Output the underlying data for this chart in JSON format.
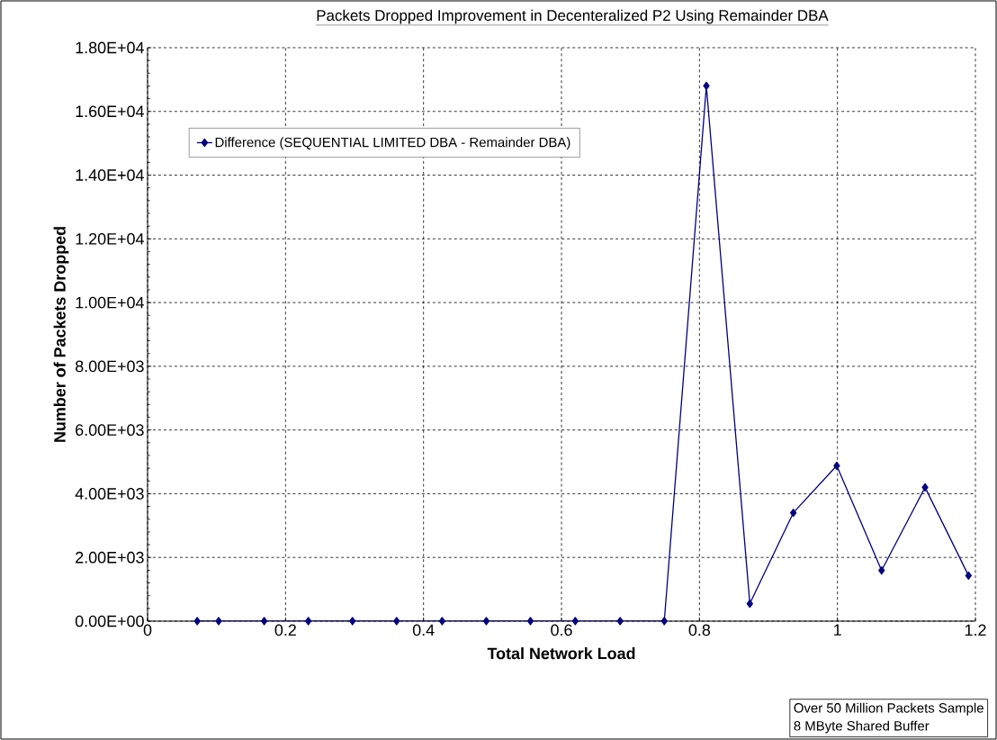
{
  "chart_data": {
    "type": "line",
    "title": "Packets Dropped Improvement in Decenteralized P2 Using Remainder DBA",
    "xlabel": "Total Network Load",
    "ylabel": "Number of Packets Dropped",
    "x": [
      0.072,
      0.103,
      0.169,
      0.233,
      0.297,
      0.361,
      0.427,
      0.491,
      0.555,
      0.62,
      0.685,
      0.749,
      0.81,
      0.873,
      0.936,
      0.999,
      1.064,
      1.127,
      1.19
    ],
    "series": [
      {
        "name": "Difference (SEQUENTIAL LIMITED DBA - Remainder DBA)",
        "color": "#000080",
        "values": [
          0,
          0,
          0,
          0,
          0,
          0,
          0,
          0,
          0,
          0,
          0,
          0,
          16800,
          550,
          3400,
          4880,
          1590,
          4200,
          1430
        ]
      }
    ],
    "xlim": [
      0,
      1.2
    ],
    "xticks": [
      0,
      0.2,
      0.4,
      0.6,
      0.8,
      1,
      1.2
    ],
    "ylim": [
      0,
      18000
    ],
    "yticks": [
      {
        "value": 0,
        "label": "0.00E+00"
      },
      {
        "value": 2000,
        "label": "2.00E+03"
      },
      {
        "value": 4000,
        "label": "4.00E+03"
      },
      {
        "value": 6000,
        "label": "6.00E+03"
      },
      {
        "value": 8000,
        "label": "8.00E+03"
      },
      {
        "value": 10000,
        "label": "1.00E+04"
      },
      {
        "value": 12000,
        "label": "1.20E+04"
      },
      {
        "value": 14000,
        "label": "1.40E+04"
      },
      {
        "value": 16000,
        "label": "1.60E+04"
      },
      {
        "value": 18000,
        "label": "1.80E+04"
      }
    ],
    "grid": true,
    "legend": "top left",
    "marker": "diamond",
    "line_style": "solid",
    "annotations": [
      "Over 50 Million Packets Sample",
      "8 MByte Shared Buffer"
    ]
  }
}
